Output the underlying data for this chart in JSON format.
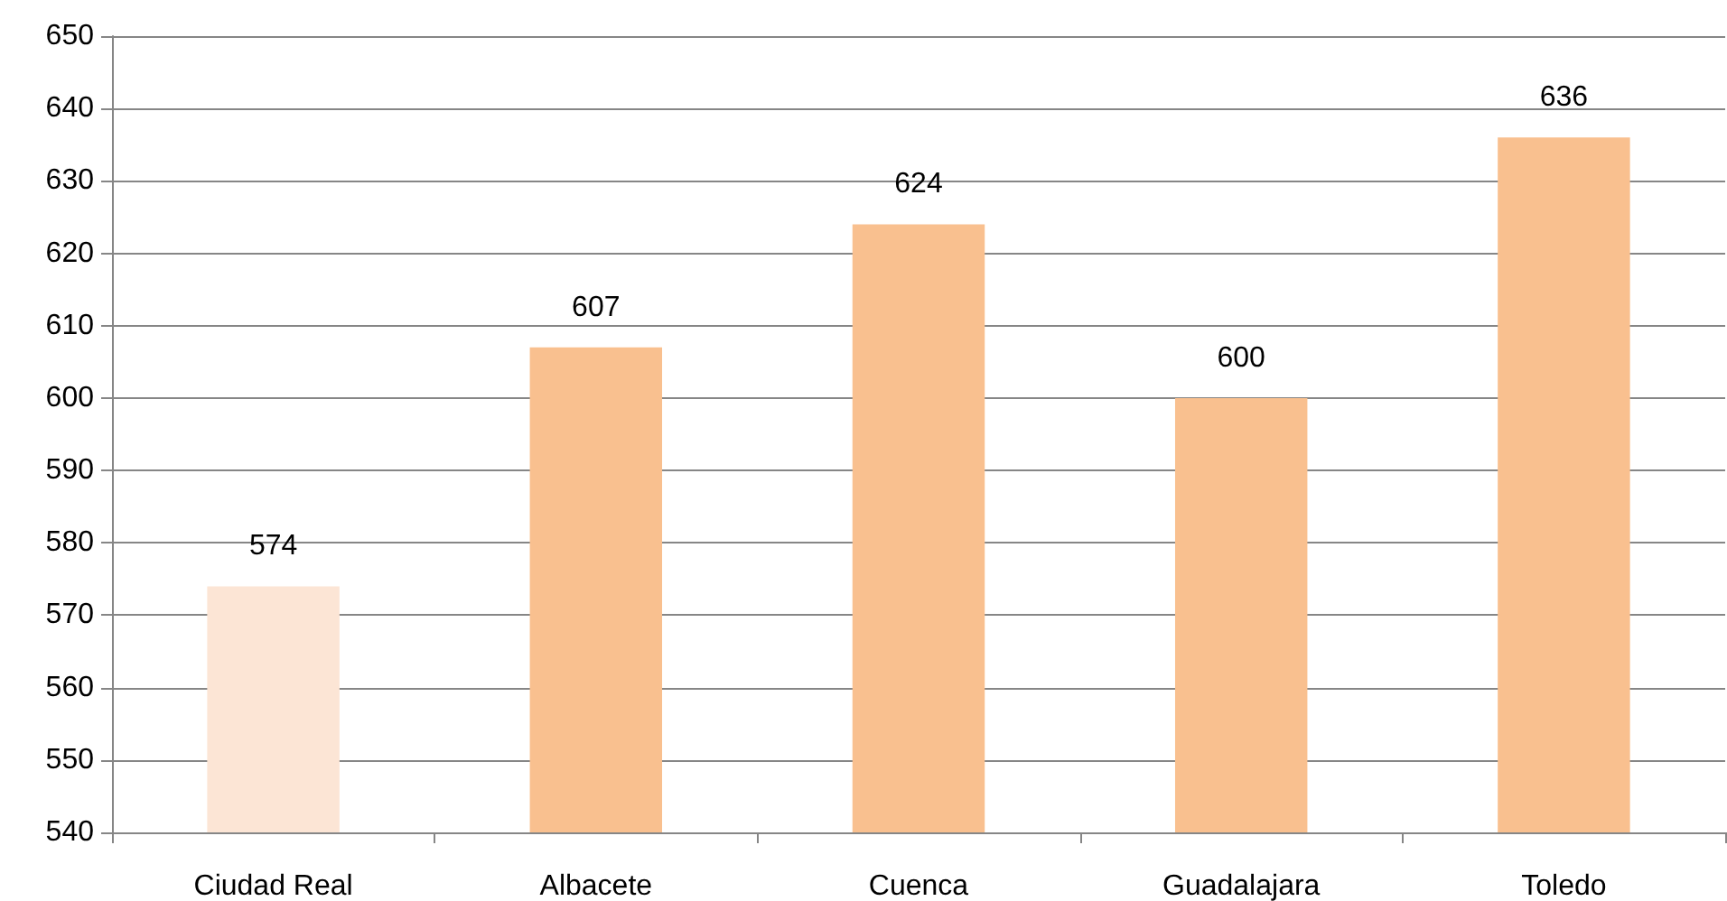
{
  "chart_data": {
    "type": "bar",
    "categories": [
      "Ciudad Real",
      "Albacete",
      "Cuenca",
      "Guadalajara",
      "Toledo"
    ],
    "values": [
      574,
      607,
      624,
      600,
      636
    ],
    "colors": [
      "#fce5d5",
      "#f9c08f",
      "#f9c08f",
      "#f9c08f",
      "#f9c08f"
    ],
    "ylim": [
      540,
      650
    ],
    "yticks": [
      540,
      550,
      560,
      570,
      580,
      590,
      600,
      610,
      620,
      630,
      640,
      650
    ],
    "grid": "y",
    "data_labels": true
  }
}
